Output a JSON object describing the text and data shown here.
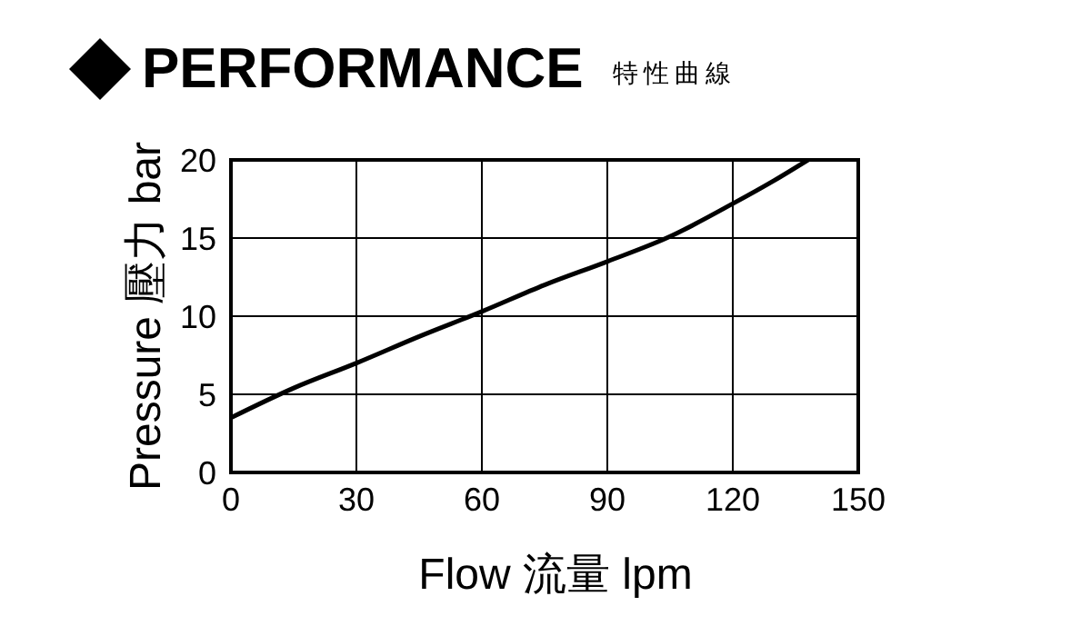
{
  "chart_data": {
    "type": "line",
    "title": "PERFORMANCE",
    "subtitle": "特性曲線",
    "xlabel": "Flow 流量 lpm",
    "ylabel": "Pressure 壓力 bar",
    "x": [
      0,
      15,
      30,
      45,
      60,
      75,
      90,
      105,
      120,
      130,
      138
    ],
    "series": [
      {
        "color": "#000000",
        "values": [
          3.5,
          5.4,
          7,
          8.7,
          10.3,
          12,
          13.5,
          15.1,
          17.2,
          18.7,
          20
        ]
      }
    ],
    "xlim": [
      0,
      150
    ],
    "xticks": [
      0,
      30,
      60,
      90,
      120,
      150
    ],
    "ylim": [
      0,
      20
    ],
    "yticks": [
      0,
      5,
      10,
      15,
      20
    ],
    "grid": true,
    "marker": "none",
    "line_style": "solid",
    "legend": false
  }
}
